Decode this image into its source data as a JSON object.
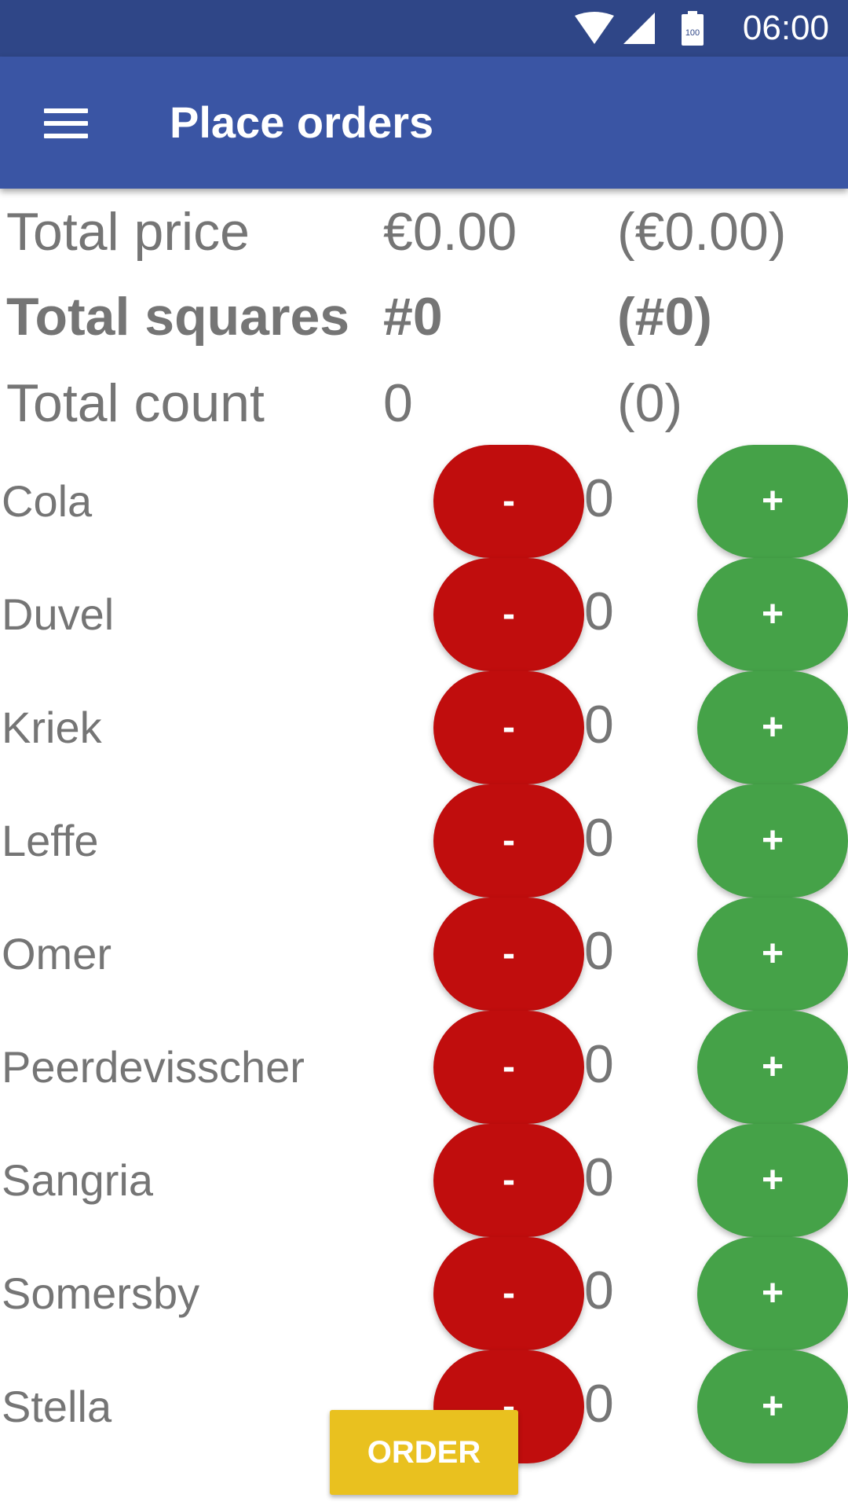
{
  "status_bar": {
    "time": "06:00",
    "battery_level": "100",
    "icons": [
      "wifi-icon",
      "signal-icon",
      "battery-icon"
    ]
  },
  "app_bar": {
    "title": "Place orders",
    "menu_icon": "hamburger-menu-icon"
  },
  "totals": [
    {
      "label": "Total price",
      "value": "€0.00",
      "pending": "(€0.00)",
      "bold": false
    },
    {
      "label": "Total squares",
      "value": "#0",
      "pending": "(#0)",
      "bold": true
    },
    {
      "label": "Total count",
      "value": "0",
      "pending": "(0)",
      "bold": false
    }
  ],
  "products": [
    {
      "name": "Cola",
      "count": "0",
      "minus": "-",
      "plus": "+"
    },
    {
      "name": "Duvel",
      "count": "0",
      "minus": "-",
      "plus": "+"
    },
    {
      "name": "Kriek",
      "count": "0",
      "minus": "-",
      "plus": "+"
    },
    {
      "name": "Leffe",
      "count": "0",
      "minus": "-",
      "plus": "+"
    },
    {
      "name": "Omer",
      "count": "0",
      "minus": "-",
      "plus": "+"
    },
    {
      "name": "Peerdevisscher",
      "count": "0",
      "minus": "-",
      "plus": "+"
    },
    {
      "name": "Sangria",
      "count": "0",
      "minus": "-",
      "plus": "+"
    },
    {
      "name": "Somersby",
      "count": "0",
      "minus": "-",
      "plus": "+"
    },
    {
      "name": "Stella",
      "count": "0",
      "minus": "-",
      "plus": "+"
    }
  ],
  "order_button": {
    "label": "ORDER"
  },
  "colors": {
    "status_bar": "#2f4687",
    "app_bar": "#3a55a4",
    "minus_button": "#c00d0d",
    "plus_button": "#45a248",
    "order_button": "#e9c11f",
    "text": "#757575"
  }
}
